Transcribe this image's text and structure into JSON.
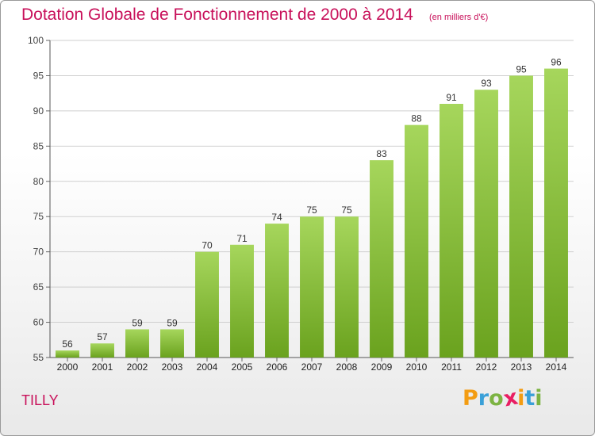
{
  "title": "Dotation Globale de Fonctionnement de 2000 à 2014",
  "unit_note": "(en milliers d'€)",
  "commune": "TILLY",
  "logo": {
    "letters": [
      "P",
      "r",
      "o",
      "x",
      "i",
      "t",
      "i"
    ],
    "colors": [
      "#f39c12",
      "#3aa0d8",
      "#7cb342",
      "#e91e63",
      "#f39c12",
      "#3aa0d8",
      "#7cb342"
    ]
  },
  "colors": {
    "bar_light": "#a6d65c",
    "bar_dark": "#6aa21e",
    "title": "#c8105a",
    "grid": "#cfcfcf"
  },
  "chart_data": {
    "type": "bar",
    "title": "Dotation Globale de Fonctionnement de 2000 à 2014",
    "subtitle": "(en milliers d'€)",
    "categories": [
      "2000",
      "2001",
      "2002",
      "2003",
      "2004",
      "2005",
      "2006",
      "2007",
      "2008",
      "2009",
      "2010",
      "2011",
      "2012",
      "2013",
      "2014"
    ],
    "values": [
      56,
      57,
      59,
      59,
      70,
      71,
      74,
      75,
      75,
      83,
      88,
      91,
      93,
      95,
      96
    ],
    "ylim": [
      55,
      100
    ],
    "yticks": [
      55,
      60,
      65,
      70,
      75,
      80,
      85,
      90,
      95,
      100
    ],
    "xlabel": "",
    "ylabel": "",
    "grid": true
  }
}
